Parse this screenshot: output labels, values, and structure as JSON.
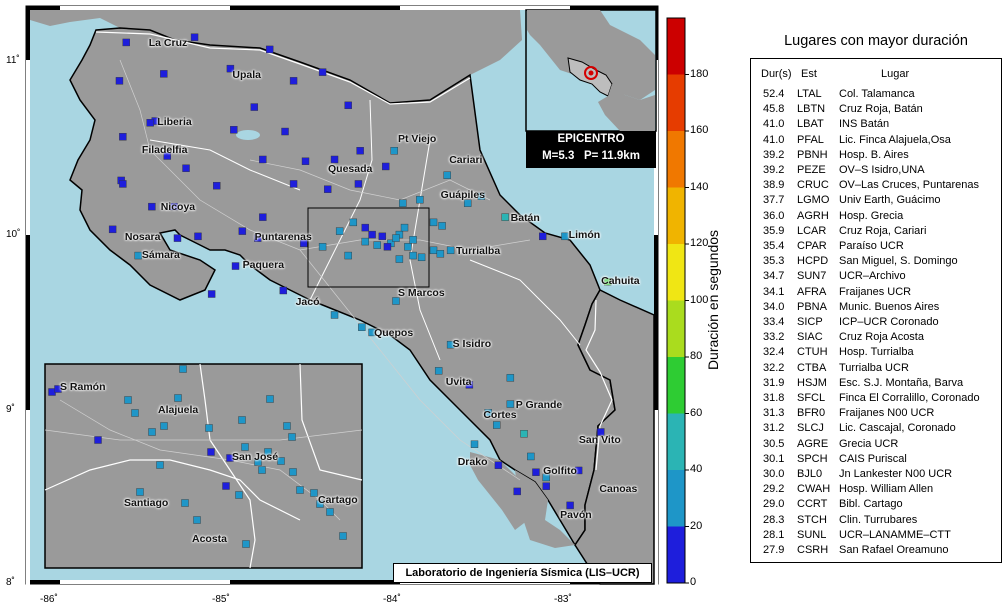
{
  "coast_color": "#a9d6e2",
  "land_color": "#9a9a9a",
  "axes": {
    "lon_ticks": [
      "-86˚",
      "-85˚",
      "-84˚",
      "-83˚"
    ],
    "lat_ticks": [
      "11˚",
      "10˚",
      "9˚",
      "8˚"
    ]
  },
  "epicenter": {
    "title": "EPICENTRO",
    "magnitude": "M=5.3",
    "depth": "P= 11.9km"
  },
  "lab_label": "Laboratorio de Ingeniería Sísmica (LIS–UCR)",
  "colorbar": {
    "title": "Duración en segundos",
    "ticks": [
      "0",
      "20",
      "40",
      "60",
      "80",
      "100",
      "120",
      "140",
      "160",
      "180"
    ],
    "colors": [
      "#1e1edc",
      "#1e96c8",
      "#2bb4b4",
      "#2ecc33",
      "#aadc1e",
      "#f0e614",
      "#f0b400",
      "#f07800",
      "#e63c00",
      "#cc0000"
    ]
  },
  "cities": [
    {
      "name": "La Cruz",
      "lon": -85.48,
      "lat": 11.09
    },
    {
      "name": "Upala",
      "lon": -84.99,
      "lat": 10.91
    },
    {
      "name": "Liberia",
      "lon": -85.43,
      "lat": 10.64
    },
    {
      "name": "Filadelfia",
      "lon": -85.52,
      "lat": 10.48
    },
    {
      "name": "Pt Viejo",
      "lon": -84.02,
      "lat": 10.54
    },
    {
      "name": "Cariari",
      "lon": -83.72,
      "lat": 10.42
    },
    {
      "name": "Quesada",
      "lon": -84.43,
      "lat": 10.37
    },
    {
      "name": "Nicoya",
      "lon": -85.41,
      "lat": 10.15
    },
    {
      "name": "Guápiles",
      "lon": -83.77,
      "lat": 10.22
    },
    {
      "name": "Batán",
      "lon": -83.36,
      "lat": 10.09
    },
    {
      "name": "Nosara",
      "lon": -85.62,
      "lat": 9.98
    },
    {
      "name": "Puntarenas",
      "lon": -84.86,
      "lat": 9.98
    },
    {
      "name": "Limón",
      "lon": -83.02,
      "lat": 9.99
    },
    {
      "name": "Turrialba",
      "lon": -83.68,
      "lat": 9.9
    },
    {
      "name": "Sámara",
      "lon": -85.52,
      "lat": 9.88
    },
    {
      "name": "Paquera",
      "lon": -84.93,
      "lat": 9.82
    },
    {
      "name": "Cahuita",
      "lon": -82.83,
      "lat": 9.73
    },
    {
      "name": "S Marcos",
      "lon": -84.02,
      "lat": 9.66
    },
    {
      "name": "Jacó",
      "lon": -84.62,
      "lat": 9.61
    },
    {
      "name": "Quepos",
      "lon": -84.16,
      "lat": 9.43
    },
    {
      "name": "S Isidro",
      "lon": -83.7,
      "lat": 9.37
    },
    {
      "name": "Uvita",
      "lon": -83.74,
      "lat": 9.15
    },
    {
      "name": "P Grande",
      "lon": -83.33,
      "lat": 9.02
    },
    {
      "name": "Cortes",
      "lon": -83.52,
      "lat": 8.96
    },
    {
      "name": "San Vito",
      "lon": -82.96,
      "lat": 8.82
    },
    {
      "name": "Drako",
      "lon": -83.67,
      "lat": 8.69
    },
    {
      "name": "Golfito",
      "lon": -83.17,
      "lat": 8.64
    },
    {
      "name": "Canoas",
      "lon": -82.84,
      "lat": 8.54
    },
    {
      "name": "Pavón",
      "lon": -83.07,
      "lat": 8.39
    }
  ],
  "inset_cities": [
    {
      "name": "S Ramón",
      "x": 60,
      "y": 388
    },
    {
      "name": "Alajuela",
      "x": 158,
      "y": 411
    },
    {
      "name": "San José",
      "x": 232,
      "y": 458
    },
    {
      "name": "Santiago",
      "x": 124,
      "y": 504
    },
    {
      "name": "Cartago",
      "x": 318,
      "y": 501
    },
    {
      "name": "Acosta",
      "x": 192,
      "y": 540
    }
  ],
  "stations": [
    {
      "lon": -85.6,
      "lat": 11.1,
      "d": 12
    },
    {
      "lon": -85.2,
      "lat": 11.13,
      "d": 12
    },
    {
      "lon": -84.76,
      "lat": 11.06,
      "d": 12
    },
    {
      "lon": -84.99,
      "lat": 10.95,
      "d": 12
    },
    {
      "lon": -85.64,
      "lat": 10.88,
      "d": 12
    },
    {
      "lon": -85.38,
      "lat": 10.92,
      "d": 12
    },
    {
      "lon": -84.62,
      "lat": 10.88,
      "d": 12
    },
    {
      "lon": -84.45,
      "lat": 10.93,
      "d": 12
    },
    {
      "lon": -84.3,
      "lat": 10.74,
      "d": 12
    },
    {
      "lon": -85.43,
      "lat": 10.65,
      "d": 12
    },
    {
      "lon": -85.46,
      "lat": 10.64,
      "d": 12
    },
    {
      "lon": -84.85,
      "lat": 10.73,
      "d": 12
    },
    {
      "lon": -84.67,
      "lat": 10.59,
      "d": 12
    },
    {
      "lon": -84.97,
      "lat": 10.6,
      "d": 12
    },
    {
      "lon": -85.62,
      "lat": 10.56,
      "d": 12
    },
    {
      "lon": -85.36,
      "lat": 10.45,
      "d": 12
    },
    {
      "lon": -85.25,
      "lat": 10.38,
      "d": 12
    },
    {
      "lon": -85.07,
      "lat": 10.28,
      "d": 12
    },
    {
      "lon": -85.63,
      "lat": 10.31,
      "d": 12
    },
    {
      "lon": -85.62,
      "lat": 10.29,
      "d": 12
    },
    {
      "lon": -85.45,
      "lat": 10.16,
      "d": 12
    },
    {
      "lon": -85.32,
      "lat": 10.16,
      "d": 12
    },
    {
      "lon": -84.8,
      "lat": 10.43,
      "d": 12
    },
    {
      "lon": -84.55,
      "lat": 10.42,
      "d": 12
    },
    {
      "lon": -84.38,
      "lat": 10.43,
      "d": 12
    },
    {
      "lon": -84.08,
      "lat": 10.39,
      "d": 12
    },
    {
      "lon": -84.23,
      "lat": 10.48,
      "d": 12
    },
    {
      "lon": -84.24,
      "lat": 10.29,
      "d": 12
    },
    {
      "lon": -84.42,
      "lat": 10.26,
      "d": 12
    },
    {
      "lon": -84.62,
      "lat": 10.29,
      "d": 12
    },
    {
      "lon": -84.8,
      "lat": 10.1,
      "d": 12
    },
    {
      "lon": -84.92,
      "lat": 10.02,
      "d": 12
    },
    {
      "lon": -84.83,
      "lat": 9.98,
      "d": 12
    },
    {
      "lon": -84.56,
      "lat": 9.95,
      "d": 12
    },
    {
      "lon": -85.68,
      "lat": 10.03,
      "d": 12
    },
    {
      "lon": -85.53,
      "lat": 9.88,
      "d": 32
    },
    {
      "lon": -85.3,
      "lat": 9.98,
      "d": 12
    },
    {
      "lon": -85.18,
      "lat": 9.99,
      "d": 12
    },
    {
      "lon": -84.96,
      "lat": 9.82,
      "d": 12
    },
    {
      "lon": -85.1,
      "lat": 9.66,
      "d": 12
    },
    {
      "lon": -84.68,
      "lat": 9.68,
      "d": 12
    },
    {
      "lon": -84.2,
      "lat": 9.96,
      "d": 30
    },
    {
      "lon": -84.1,
      "lat": 9.99,
      "d": 12
    },
    {
      "lon": -84.05,
      "lat": 9.95,
      "d": 30
    },
    {
      "lon": -84.0,
      "lat": 10.0,
      "d": 30
    },
    {
      "lon": -83.95,
      "lat": 9.93,
      "d": 30
    },
    {
      "lon": -83.92,
      "lat": 9.88,
      "d": 32
    },
    {
      "lon": -83.87,
      "lat": 9.87,
      "d": 30
    },
    {
      "lon": -84.3,
      "lat": 9.88,
      "d": 30
    },
    {
      "lon": -84.27,
      "lat": 10.07,
      "d": 30
    },
    {
      "lon": -84.2,
      "lat": 10.04,
      "d": 12
    },
    {
      "lon": -84.16,
      "lat": 10.0,
      "d": 12
    },
    {
      "lon": -84.13,
      "lat": 9.94,
      "d": 30
    },
    {
      "lon": -84.45,
      "lat": 9.93,
      "d": 30
    },
    {
      "lon": -84.35,
      "lat": 10.02,
      "d": 30
    },
    {
      "lon": -84.07,
      "lat": 9.93,
      "d": 12
    },
    {
      "lon": -84.02,
      "lat": 9.98,
      "d": 30
    },
    {
      "lon": -84.0,
      "lat": 9.86,
      "d": 30
    },
    {
      "lon": -83.97,
      "lat": 10.04,
      "d": 30
    },
    {
      "lon": -83.92,
      "lat": 9.97,
      "d": 30
    },
    {
      "lon": -83.8,
      "lat": 9.91,
      "d": 30
    },
    {
      "lon": -83.76,
      "lat": 9.89,
      "d": 30
    },
    {
      "lon": -83.7,
      "lat": 9.91,
      "d": 30
    },
    {
      "lon": -83.98,
      "lat": 10.18,
      "d": 30
    },
    {
      "lon": -83.8,
      "lat": 10.07,
      "d": 30
    },
    {
      "lon": -83.75,
      "lat": 10.05,
      "d": 30
    },
    {
      "lon": -84.02,
      "lat": 9.62,
      "d": 30
    },
    {
      "lon": -83.52,
      "lat": 10.22,
      "d": 30
    },
    {
      "lon": -83.6,
      "lat": 10.18,
      "d": 30
    },
    {
      "lon": -83.72,
      "lat": 10.34,
      "d": 30
    },
    {
      "lon": -83.88,
      "lat": 10.2,
      "d": 30
    },
    {
      "lon": -84.03,
      "lat": 10.48,
      "d": 30
    },
    {
      "lon": -83.38,
      "lat": 10.1,
      "d": 52
    },
    {
      "lon": -83.16,
      "lat": 9.99,
      "d": 12
    },
    {
      "lon": -83.03,
      "lat": 9.99,
      "d": 30
    },
    {
      "lon": -82.78,
      "lat": 9.73,
      "d": 60
    },
    {
      "lon": -84.38,
      "lat": 9.54,
      "d": 30
    },
    {
      "lon": -84.16,
      "lat": 9.44,
      "d": 30
    },
    {
      "lon": -84.22,
      "lat": 9.47,
      "d": 30
    },
    {
      "lon": -83.7,
      "lat": 9.37,
      "d": 30
    },
    {
      "lon": -83.77,
      "lat": 9.22,
      "d": 30
    },
    {
      "lon": -83.59,
      "lat": 9.14,
      "d": 12
    },
    {
      "lon": -83.35,
      "lat": 9.18,
      "d": 30
    },
    {
      "lon": -83.35,
      "lat": 9.03,
      "d": 30
    },
    {
      "lon": -83.48,
      "lat": 8.98,
      "d": 30
    },
    {
      "lon": -83.43,
      "lat": 8.91,
      "d": 30
    },
    {
      "lon": -83.27,
      "lat": 8.86,
      "d": 52
    },
    {
      "lon": -83.56,
      "lat": 8.8,
      "d": 30
    },
    {
      "lon": -83.42,
      "lat": 8.68,
      "d": 12
    },
    {
      "lon": -83.2,
      "lat": 8.64,
      "d": 12
    },
    {
      "lon": -83.14,
      "lat": 8.61,
      "d": 30
    },
    {
      "lon": -83.14,
      "lat": 8.56,
      "d": 12
    },
    {
      "lon": -82.95,
      "lat": 8.65,
      "d": 12
    },
    {
      "lon": -82.82,
      "lat": 8.87,
      "d": 12
    },
    {
      "lon": -83.31,
      "lat": 8.53,
      "d": 12
    },
    {
      "lon": -83.0,
      "lat": 8.45,
      "d": 12
    },
    {
      "lon": -83.23,
      "lat": 8.73,
      "d": 30
    }
  ],
  "inset_stations": [
    {
      "x": 52,
      "y": 392,
      "d": 12
    },
    {
      "x": 58,
      "y": 389,
      "d": 12
    },
    {
      "x": 183,
      "y": 369,
      "d": 30
    },
    {
      "x": 128,
      "y": 400,
      "d": 30
    },
    {
      "x": 135,
      "y": 413,
      "d": 30
    },
    {
      "x": 178,
      "y": 398,
      "d": 30
    },
    {
      "x": 270,
      "y": 399,
      "d": 30
    },
    {
      "x": 164,
      "y": 426,
      "d": 30
    },
    {
      "x": 152,
      "y": 432,
      "d": 30
    },
    {
      "x": 98,
      "y": 440,
      "d": 12
    },
    {
      "x": 209,
      "y": 428,
      "d": 30
    },
    {
      "x": 242,
      "y": 420,
      "d": 30
    },
    {
      "x": 287,
      "y": 426,
      "d": 30
    },
    {
      "x": 292,
      "y": 437,
      "d": 30
    },
    {
      "x": 211,
      "y": 452,
      "d": 12
    },
    {
      "x": 245,
      "y": 447,
      "d": 30
    },
    {
      "x": 230,
      "y": 458,
      "d": 12
    },
    {
      "x": 258,
      "y": 462,
      "d": 30
    },
    {
      "x": 262,
      "y": 470,
      "d": 30
    },
    {
      "x": 160,
      "y": 465,
      "d": 30
    },
    {
      "x": 140,
      "y": 492,
      "d": 30
    },
    {
      "x": 239,
      "y": 495,
      "d": 30
    },
    {
      "x": 293,
      "y": 472,
      "d": 30
    },
    {
      "x": 300,
      "y": 490,
      "d": 30
    },
    {
      "x": 314,
      "y": 493,
      "d": 30
    },
    {
      "x": 320,
      "y": 504,
      "d": 30
    },
    {
      "x": 330,
      "y": 512,
      "d": 30
    },
    {
      "x": 197,
      "y": 520,
      "d": 30
    },
    {
      "x": 246,
      "y": 544,
      "d": 30
    },
    {
      "x": 343,
      "y": 536,
      "d": 30
    },
    {
      "x": 185,
      "y": 503,
      "d": 30
    },
    {
      "x": 226,
      "y": 486,
      "d": 12
    },
    {
      "x": 268,
      "y": 452,
      "d": 30
    },
    {
      "x": 281,
      "y": 461,
      "d": 30
    }
  ],
  "table": {
    "title": "Lugares con mayor duración",
    "headers": [
      "Dur(s)",
      "Est",
      "Lugar"
    ],
    "rows": [
      [
        "52.4",
        "LTAL",
        "Col. Talamanca"
      ],
      [
        "45.8",
        "LBTN",
        "Cruz Roja, Batán"
      ],
      [
        "41.0",
        "LBAT",
        "INS Batán"
      ],
      [
        "41.0",
        "PFAL",
        "Lic. Finca Alajuela,Osa"
      ],
      [
        "39.2",
        "PBNH",
        "Hosp. B. Aires"
      ],
      [
        "39.2",
        "PEZE",
        "OV–S Isidro,UNA"
      ],
      [
        "38.9",
        "CRUC",
        "OV–Las Cruces, Puntarenas"
      ],
      [
        "37.7",
        "LGMO",
        "Univ Earth, Guácimo"
      ],
      [
        "36.0",
        "AGRH",
        "Hosp. Grecia"
      ],
      [
        "35.9",
        "LCAR",
        "Cruz Roja, Cariari"
      ],
      [
        "35.4",
        "CPAR",
        "Paraíso UCR"
      ],
      [
        "35.3",
        "HCPD",
        "San Miguel, S. Domingo"
      ],
      [
        "34.7",
        "SUN7",
        "UCR–Archivo"
      ],
      [
        "34.1",
        "AFRA",
        "Fraijanes UCR"
      ],
      [
        "34.0",
        "PBNA",
        "Munic. Buenos Aires"
      ],
      [
        "33.4",
        "SICP",
        "ICP–UCR Coronado"
      ],
      [
        "33.2",
        "SIAC",
        "Cruz Roja Acosta"
      ],
      [
        "32.4",
        "CTUH",
        "Hosp. Turrialba"
      ],
      [
        "32.2",
        "CTBA",
        "Turrialba UCR"
      ],
      [
        "31.9",
        "HSJM",
        "Esc. S.J. Montaña, Barva"
      ],
      [
        "31.8",
        "SFCL",
        "Finca El Corralillo, Coronado"
      ],
      [
        "31.3",
        "BFR0",
        "Fraijanes N00 UCR"
      ],
      [
        "31.2",
        "SLCJ",
        "Lic. Cascajal, Coronado"
      ],
      [
        "30.5",
        "AGRE",
        "Grecia UCR"
      ],
      [
        "30.1",
        "SPCH",
        "CAIS Puriscal"
      ],
      [
        "30.0",
        "BJL0",
        "Jn Lankester N00 UCR"
      ],
      [
        "29.2",
        "CWAH",
        "Hosp. William Allen"
      ],
      [
        "29.0",
        "CCRT",
        "Bibl. Cartago"
      ],
      [
        "28.3",
        "STCH",
        "Clin. Turrubares"
      ],
      [
        "28.1",
        "SUNL",
        "UCR–LANAMME–CTT"
      ],
      [
        "27.9",
        "CSRH",
        "San Rafael Oreamuno"
      ]
    ]
  }
}
